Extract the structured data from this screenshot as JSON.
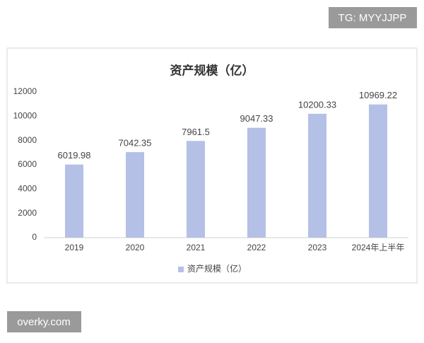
{
  "chart_data": {
    "type": "bar",
    "title": "资产规模（亿）",
    "categories": [
      "2019",
      "2020",
      "2021",
      "2022",
      "2023",
      "2024年上半年"
    ],
    "series": [
      {
        "name": "资产规模（亿）",
        "color": "#b4c0e6",
        "values": [
          6019.98,
          7042.35,
          7961.5,
          9047.33,
          10200.33,
          10969.22
        ]
      }
    ],
    "ylim": [
      0,
      12000
    ],
    "yticks": [
      0,
      2000,
      4000,
      6000,
      8000,
      10000,
      12000
    ],
    "grid": false,
    "legend": "bottom"
  },
  "watermarks": [
    "TG: MYYJJPP",
    "overky.com"
  ]
}
